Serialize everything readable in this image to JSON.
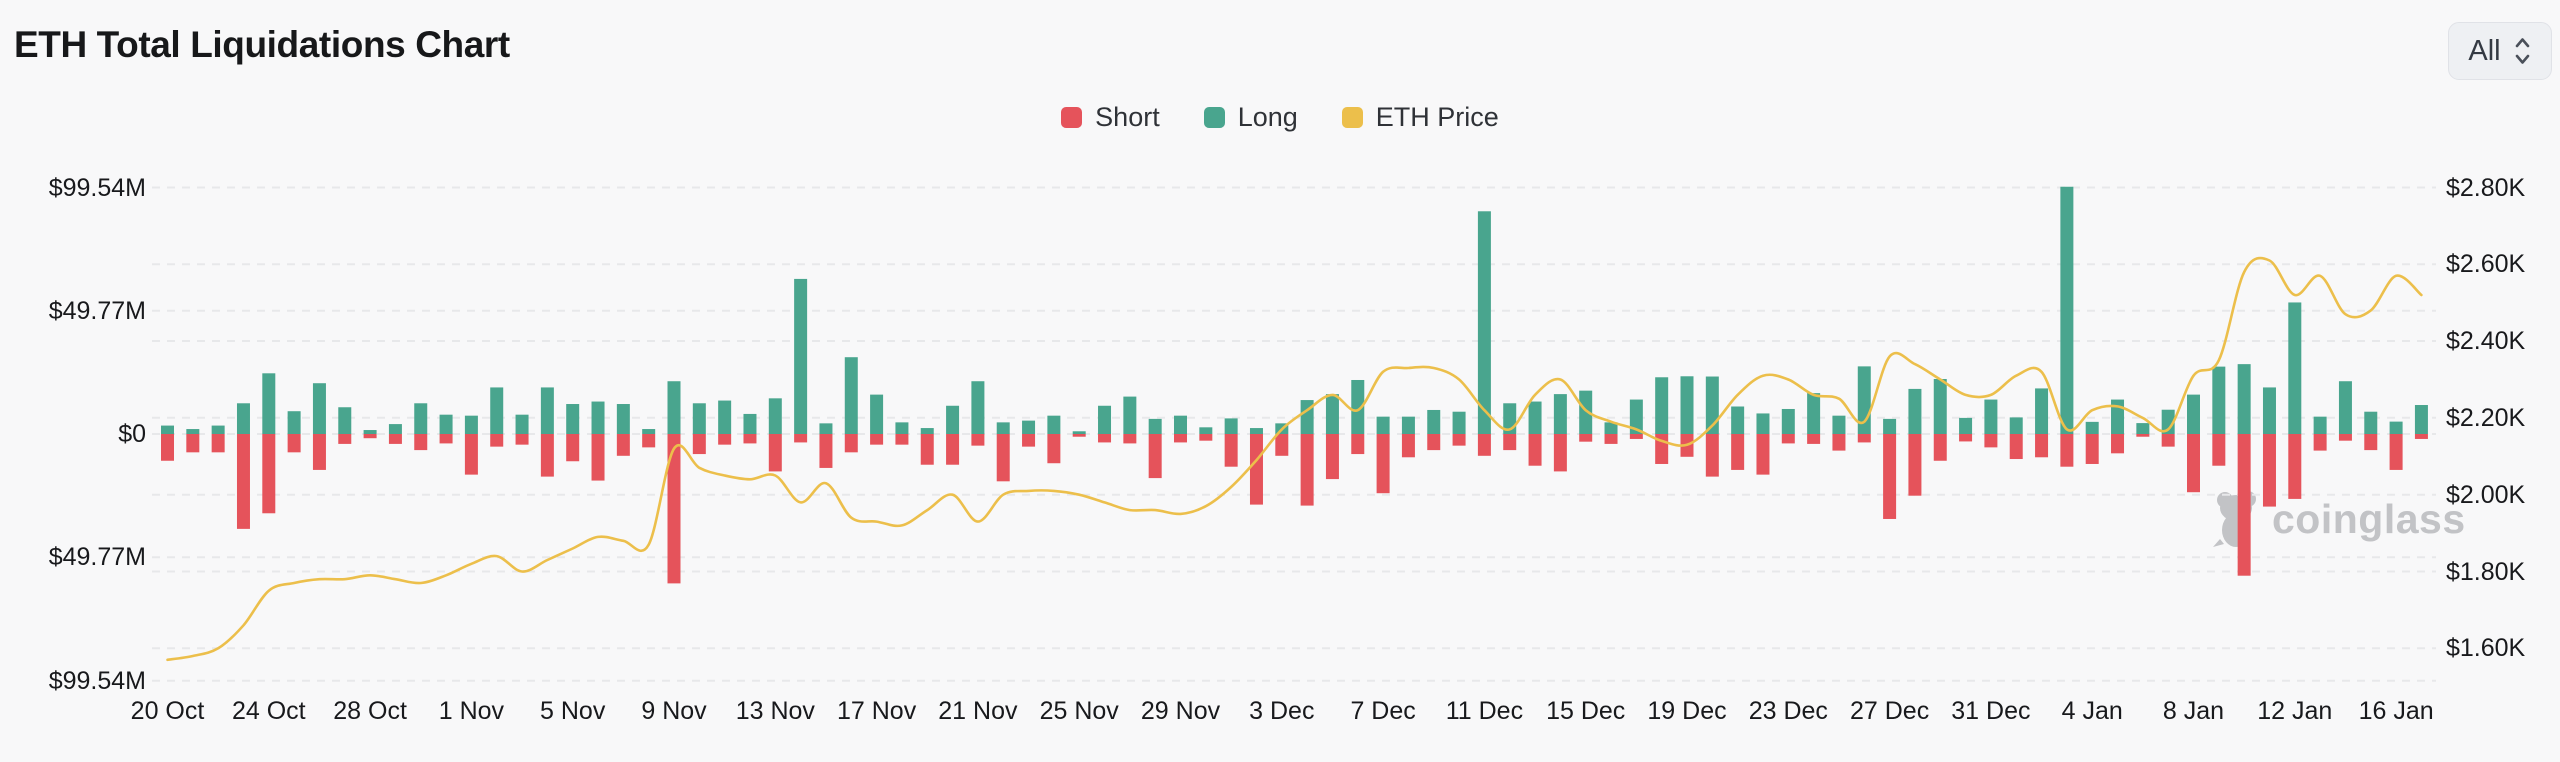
{
  "page": {
    "title": "ETH Total Liquidations Chart",
    "background": "#f8f8f9"
  },
  "controls": {
    "range_selector": {
      "value": "All"
    }
  },
  "legend": {
    "items": [
      {
        "label": "Short",
        "color": "#e5535b"
      },
      {
        "label": "Long",
        "color": "#49a58e"
      },
      {
        "label": "ETH Price",
        "color": "#ecbf4b"
      }
    ]
  },
  "watermark": {
    "text": "coinglass",
    "color": "#c2c3c6"
  },
  "axes": {
    "left": {
      "labels": [
        "$99.54M",
        "$49.77M",
        "$0",
        "$49.77M",
        "$99.54M"
      ],
      "values_m": [
        99.54,
        49.77,
        0,
        -49.77,
        -99.54
      ]
    },
    "right": {
      "labels": [
        "$2.80K",
        "$2.60K",
        "$2.40K",
        "$2.20K",
        "$2.00K",
        "$1.80K",
        "$1.60K"
      ],
      "values_k": [
        2.8,
        2.6,
        2.4,
        2.2,
        2.0,
        1.8,
        1.6
      ]
    },
    "x": {
      "tick_labels": [
        "20 Oct",
        "24 Oct",
        "28 Oct",
        "1 Nov",
        "5 Nov",
        "9 Nov",
        "13 Nov",
        "17 Nov",
        "21 Nov",
        "25 Nov",
        "29 Nov",
        "3 Dec",
        "7 Dec",
        "11 Dec",
        "15 Dec",
        "19 Dec",
        "23 Dec",
        "27 Dec",
        "31 Dec",
        "4 Jan",
        "8 Jan",
        "12 Jan",
        "16 Jan"
      ],
      "tick_every_n_days": 4
    }
  },
  "chart_data": {
    "type": "bar",
    "subtype": "diverging-bars-with-line",
    "title": "ETH Total Liquidations Chart",
    "grid": "dashed-horizontal",
    "legend_position": "top-center",
    "left_axis_unit": "USD millions (liquidations)",
    "right_axis_unit": "USD thousands (ETH price)",
    "left_axis_ticks_m": [
      99.54,
      49.77,
      0,
      -49.77,
      -99.54
    ],
    "right_axis_ticks_k": [
      2.8,
      2.6,
      2.4,
      2.2,
      2.0,
      1.8,
      1.6
    ],
    "categories": [
      "20 Oct",
      "21 Oct",
      "22 Oct",
      "23 Oct",
      "24 Oct",
      "25 Oct",
      "26 Oct",
      "27 Oct",
      "28 Oct",
      "29 Oct",
      "30 Oct",
      "31 Oct",
      "1 Nov",
      "2 Nov",
      "3 Nov",
      "4 Nov",
      "5 Nov",
      "6 Nov",
      "7 Nov",
      "8 Nov",
      "9 Nov",
      "10 Nov",
      "11 Nov",
      "12 Nov",
      "13 Nov",
      "14 Nov",
      "15 Nov",
      "16 Nov",
      "17 Nov",
      "18 Nov",
      "19 Nov",
      "20 Nov",
      "21 Nov",
      "22 Nov",
      "23 Nov",
      "24 Nov",
      "25 Nov",
      "26 Nov",
      "27 Nov",
      "28 Nov",
      "29 Nov",
      "30 Nov",
      "1 Dec",
      "2 Dec",
      "3 Dec",
      "4 Dec",
      "5 Dec",
      "6 Dec",
      "7 Dec",
      "8 Dec",
      "9 Dec",
      "10 Dec",
      "11 Dec",
      "12 Dec",
      "13 Dec",
      "14 Dec",
      "15 Dec",
      "16 Dec",
      "17 Dec",
      "18 Dec",
      "19 Dec",
      "20 Dec",
      "21 Dec",
      "22 Dec",
      "23 Dec",
      "24 Dec",
      "25 Dec",
      "26 Dec",
      "27 Dec",
      "28 Dec",
      "29 Dec",
      "30 Dec",
      "31 Dec",
      "1 Jan",
      "2 Jan",
      "3 Jan",
      "4 Jan",
      "5 Jan",
      "6 Jan",
      "7 Jan",
      "8 Jan",
      "9 Jan",
      "10 Jan",
      "11 Jan",
      "12 Jan",
      "13 Jan",
      "14 Jan",
      "15 Jan",
      "16 Jan",
      "17 Jan"
    ],
    "series": [
      {
        "name": "Short",
        "type": "bar",
        "direction": "down",
        "color": "#e5535b",
        "unit": "USD millions",
        "values": [
          10.8,
          7.4,
          7.4,
          38.3,
          32.0,
          7.4,
          14.5,
          4.0,
          1.7,
          4.0,
          6.5,
          3.8,
          16.4,
          5.1,
          4.3,
          17.2,
          11.0,
          18.8,
          8.8,
          5.4,
          60.3,
          8.1,
          4.3,
          3.8,
          15.1,
          3.4,
          13.7,
          7.4,
          4.3,
          4.3,
          12.4,
          12.4,
          4.7,
          19.1,
          5.1,
          11.8,
          1.1,
          3.4,
          3.8,
          17.8,
          3.4,
          2.7,
          13.2,
          28.5,
          8.8,
          28.9,
          18.2,
          8.1,
          23.9,
          9.4,
          6.5,
          4.7,
          8.8,
          6.5,
          12.8,
          15.1,
          3.1,
          4.0,
          2.0,
          12.1,
          9.2,
          17.2,
          14.5,
          16.4,
          3.8,
          4.0,
          6.7,
          3.4,
          34.3,
          24.9,
          10.8,
          3.0,
          5.4,
          10.1,
          9.4,
          13.2,
          12.1,
          7.8,
          1.1,
          5.1,
          23.5,
          12.8,
          57.2,
          29.3,
          26.2,
          6.7,
          2.7,
          6.5,
          14.5,
          2.0
        ]
      },
      {
        "name": "Long",
        "type": "bar",
        "direction": "up",
        "color": "#49a58e",
        "unit": "USD millions",
        "values": [
          3.4,
          2.0,
          3.4,
          12.4,
          24.5,
          9.2,
          20.5,
          10.8,
          1.6,
          4.0,
          12.4,
          7.8,
          7.4,
          18.8,
          7.8,
          18.8,
          12.1,
          13.1,
          12.1,
          2.0,
          21.3,
          12.4,
          13.5,
          8.1,
          14.4,
          62.6,
          4.3,
          31.0,
          15.9,
          4.7,
          2.4,
          11.4,
          21.3,
          4.7,
          5.4,
          7.4,
          1.1,
          11.4,
          15.1,
          6.1,
          7.4,
          2.7,
          6.3,
          2.4,
          4.3,
          13.7,
          16.1,
          21.8,
          7.0,
          7.0,
          9.7,
          9.0,
          89.9,
          12.4,
          13.1,
          16.1,
          17.5,
          4.7,
          13.9,
          22.9,
          23.3,
          23.2,
          11.1,
          8.3,
          10.1,
          16.5,
          7.4,
          27.3,
          6.1,
          18.2,
          22.2,
          6.5,
          13.9,
          6.7,
          18.4,
          99.8,
          4.9,
          13.9,
          4.4,
          9.8,
          15.9,
          27.2,
          28.2,
          18.8,
          53.1,
          7.0,
          21.3,
          9.0,
          5.0,
          11.7
        ]
      },
      {
        "name": "ETH Price",
        "type": "line",
        "axis": "right",
        "color": "#ecbf4b",
        "unit": "USD thousands",
        "values": [
          1.57,
          1.58,
          1.6,
          1.66,
          1.75,
          1.77,
          1.78,
          1.78,
          1.79,
          1.78,
          1.77,
          1.79,
          1.82,
          1.84,
          1.8,
          1.83,
          1.86,
          1.89,
          1.88,
          1.87,
          2.12,
          2.07,
          2.05,
          2.04,
          2.05,
          1.98,
          2.03,
          1.94,
          1.93,
          1.92,
          1.96,
          2.0,
          1.93,
          2.0,
          2.01,
          2.01,
          2.0,
          1.98,
          1.96,
          1.96,
          1.95,
          1.97,
          2.02,
          2.09,
          2.17,
          2.22,
          2.26,
          2.22,
          2.32,
          2.33,
          2.33,
          2.3,
          2.22,
          2.17,
          2.26,
          2.3,
          2.22,
          2.19,
          2.17,
          2.14,
          2.13,
          2.18,
          2.26,
          2.31,
          2.3,
          2.26,
          2.25,
          2.19,
          2.36,
          2.34,
          2.3,
          2.26,
          2.26,
          2.31,
          2.32,
          2.17,
          2.22,
          2.23,
          2.2,
          2.17,
          2.31,
          2.35,
          2.58,
          2.61,
          2.52,
          2.57,
          2.47,
          2.48,
          2.57,
          2.52
        ]
      }
    ]
  },
  "colors": {
    "background": "#f8f8f9",
    "gridline": "#e7e8ea",
    "axis_text": "#18191c",
    "short": "#e5535b",
    "long": "#49a58e",
    "price_line": "#ecbf4b",
    "watermark": "#c2c3c6"
  }
}
